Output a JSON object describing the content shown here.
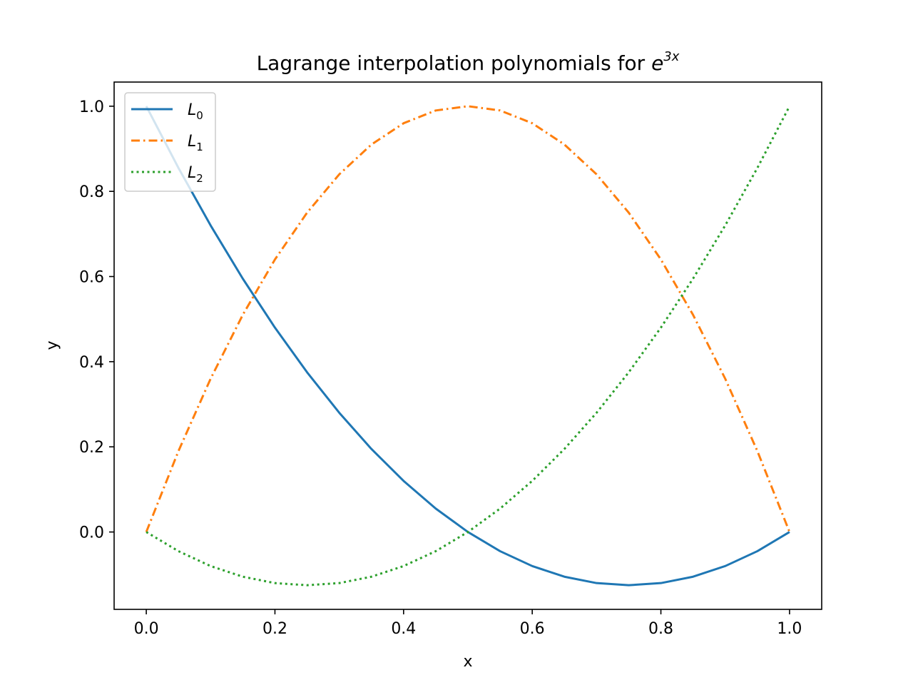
{
  "chart_data": {
    "type": "line",
    "title": {
      "main": "Lagrange interpolation polynomials for ",
      "base": "e",
      "exponent": "3x"
    },
    "xlabel": "x",
    "ylabel": "y",
    "xlim": [
      -0.05,
      1.05
    ],
    "ylim": [
      -0.1817,
      1.0567
    ],
    "xticks": [
      0.0,
      0.2,
      0.4,
      0.6,
      0.8,
      1.0
    ],
    "xtick_labels": [
      "0.0",
      "0.2",
      "0.4",
      "0.6",
      "0.8",
      "1.0"
    ],
    "yticks": [
      0.0,
      0.2,
      0.4,
      0.6,
      0.8,
      1.0
    ],
    "ytick_labels": [
      "0.0",
      "0.2",
      "0.4",
      "0.6",
      "0.8",
      "1.0"
    ],
    "grid": false,
    "legend_position": "upper-left",
    "x": [
      0.0,
      0.05,
      0.1,
      0.15,
      0.2,
      0.25,
      0.3,
      0.35,
      0.4,
      0.45,
      0.5,
      0.55,
      0.6,
      0.65,
      0.7,
      0.75,
      0.8,
      0.85,
      0.9,
      0.95,
      1.0
    ],
    "series": [
      {
        "name": "L",
        "subscript": "0",
        "color": "#1f77b4",
        "style": "solid",
        "values": [
          1.0,
          0.855,
          0.72,
          0.595,
          0.48,
          0.375,
          0.28,
          0.195,
          0.12,
          0.055,
          0.0,
          -0.045,
          -0.08,
          -0.105,
          -0.12,
          -0.125,
          -0.12,
          -0.105,
          -0.08,
          -0.045,
          0.0
        ]
      },
      {
        "name": "L",
        "subscript": "1",
        "color": "#ff7f0e",
        "style": "dashdot",
        "values": [
          0.0,
          0.19,
          0.36,
          0.51,
          0.64,
          0.75,
          0.84,
          0.91,
          0.96,
          0.99,
          1.0,
          0.99,
          0.96,
          0.91,
          0.84,
          0.75,
          0.64,
          0.51,
          0.36,
          0.19,
          0.0
        ]
      },
      {
        "name": "L",
        "subscript": "2",
        "color": "#2ca02c",
        "style": "dotted",
        "values": [
          0.0,
          -0.045,
          -0.08,
          -0.105,
          -0.12,
          -0.125,
          -0.12,
          -0.105,
          -0.08,
          -0.045,
          0.0,
          0.055,
          0.12,
          0.195,
          0.28,
          0.375,
          0.48,
          0.595,
          0.72,
          0.855,
          1.0
        ]
      }
    ]
  }
}
